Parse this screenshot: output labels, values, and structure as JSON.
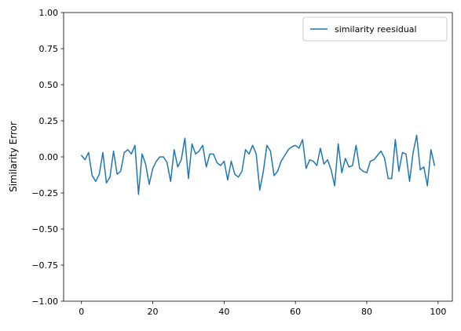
{
  "chart_data": {
    "type": "line",
    "title": "",
    "xlabel": "",
    "ylabel": "Similarity Error",
    "xlim": [
      -5,
      104
    ],
    "ylim": [
      -1.0,
      1.0
    ],
    "xticks": [
      0,
      20,
      40,
      60,
      80,
      100
    ],
    "xtick_labels": [
      "0",
      "20",
      "40",
      "60",
      "80",
      "100"
    ],
    "yticks": [
      -1.0,
      -0.75,
      -0.5,
      -0.25,
      0.0,
      0.25,
      0.5,
      0.75,
      1.0
    ],
    "ytick_labels": [
      "−1.00",
      "−0.75",
      "−0.50",
      "−0.25",
      "0.00",
      "0.25",
      "0.50",
      "0.75",
      "1.00"
    ],
    "grid": false,
    "legend_position": "top-right",
    "series": [
      {
        "name": "similarity reesidual",
        "color": "#1f77b4",
        "x": [
          0,
          1,
          2,
          3,
          4,
          5,
          6,
          7,
          8,
          9,
          10,
          11,
          12,
          13,
          14,
          15,
          16,
          17,
          18,
          19,
          20,
          21,
          22,
          23,
          24,
          25,
          26,
          27,
          28,
          29,
          30,
          31,
          32,
          33,
          34,
          35,
          36,
          37,
          38,
          39,
          40,
          41,
          42,
          43,
          44,
          45,
          46,
          47,
          48,
          49,
          50,
          51,
          52,
          53,
          54,
          55,
          56,
          57,
          58,
          59,
          60,
          61,
          62,
          63,
          64,
          65,
          66,
          67,
          68,
          69,
          70,
          71,
          72,
          73,
          74,
          75,
          76,
          77,
          78,
          79,
          80,
          81,
          82,
          83,
          84,
          85,
          86,
          87,
          88,
          89,
          90,
          91,
          92,
          93,
          94,
          95,
          96,
          97,
          98,
          99
        ],
        "values": [
          0.01,
          -0.02,
          0.03,
          -0.13,
          -0.17,
          -0.12,
          0.03,
          -0.18,
          -0.14,
          0.04,
          -0.12,
          -0.1,
          0.03,
          0.05,
          0.02,
          0.08,
          -0.26,
          0.02,
          -0.05,
          -0.19,
          -0.08,
          -0.03,
          0.0,
          0.0,
          -0.04,
          -0.17,
          0.05,
          -0.07,
          -0.02,
          0.13,
          -0.15,
          0.09,
          0.02,
          0.04,
          0.08,
          -0.07,
          0.02,
          0.02,
          -0.04,
          -0.06,
          -0.03,
          -0.16,
          -0.03,
          -0.12,
          -0.14,
          -0.1,
          0.05,
          0.02,
          0.08,
          0.02,
          -0.23,
          -0.1,
          0.08,
          0.04,
          -0.13,
          -0.1,
          -0.03,
          0.01,
          0.05,
          0.07,
          0.08,
          0.06,
          0.12,
          -0.08,
          -0.02,
          -0.03,
          -0.06,
          0.06,
          -0.05,
          -0.02,
          -0.09,
          -0.2,
          0.09,
          -0.11,
          -0.01,
          -0.07,
          -0.06,
          0.08,
          -0.08,
          -0.1,
          -0.11,
          -0.03,
          -0.02,
          0.01,
          0.04,
          -0.01,
          -0.15,
          -0.15,
          0.12,
          -0.1,
          0.03,
          0.02,
          -0.17,
          0.03,
          0.15,
          -0.09,
          -0.07,
          -0.2,
          0.05,
          -0.06
        ]
      }
    ]
  }
}
